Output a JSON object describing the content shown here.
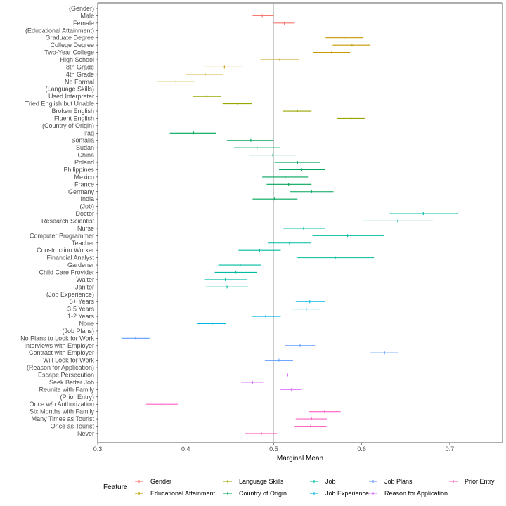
{
  "chart_data": {
    "type": "forest",
    "xlabel": "Marginal Mean",
    "xlim": [
      0.3,
      0.76
    ],
    "x_ticks": [
      0.3,
      0.4,
      0.5,
      0.6,
      0.7
    ],
    "x_tick_labels": [
      "0.3",
      "0.4",
      "0.5",
      "0.6",
      "0.7"
    ],
    "reference_line": 0.5,
    "grid": false,
    "legend_title": "Feature",
    "legend_position": "bottom",
    "features": [
      {
        "name": "Gender",
        "color": "#F8766D"
      },
      {
        "name": "Educational Attainment",
        "color": "#C49A00"
      },
      {
        "name": "Language Skills",
        "color": "#99A800"
      },
      {
        "name": "Country of Origin",
        "color": "#00A65C"
      },
      {
        "name": "Job",
        "color": "#00BCA3"
      },
      {
        "name": "Job Experience",
        "color": "#00B8E5"
      },
      {
        "name": "Job Plans",
        "color": "#619CFF"
      },
      {
        "name": "Reason for Application",
        "color": "#DB72FB"
      },
      {
        "name": "Prior Entry",
        "color": "#FF61C3"
      }
    ],
    "rows": [
      {
        "label": "(Gender)",
        "feature": null
      },
      {
        "label": "Male",
        "feature": "Gender",
        "est": 0.487,
        "lo": 0.476,
        "hi": 0.5
      },
      {
        "label": "Female",
        "feature": "Gender",
        "est": 0.512,
        "lo": 0.5,
        "hi": 0.524
      },
      {
        "label": "(Educational Attainment)",
        "feature": null
      },
      {
        "label": "Graduate Degree",
        "feature": "Educational Attainment",
        "est": 0.58,
        "lo": 0.559,
        "hi": 0.602
      },
      {
        "label": "College Degree",
        "feature": "Educational Attainment",
        "est": 0.589,
        "lo": 0.567,
        "hi": 0.61
      },
      {
        "label": "Two-Year College",
        "feature": "Educational Attainment",
        "est": 0.566,
        "lo": 0.545,
        "hi": 0.587
      },
      {
        "label": "High School",
        "feature": "Educational Attainment",
        "est": 0.507,
        "lo": 0.485,
        "hi": 0.529
      },
      {
        "label": "8th Grade",
        "feature": "Educational Attainment",
        "est": 0.444,
        "lo": 0.422,
        "hi": 0.465
      },
      {
        "label": "4th Grade",
        "feature": "Educational Attainment",
        "est": 0.422,
        "lo": 0.4,
        "hi": 0.443
      },
      {
        "label": "No Formal",
        "feature": "Educational Attainment",
        "est": 0.389,
        "lo": 0.368,
        "hi": 0.41
      },
      {
        "label": "(Language Skills)",
        "feature": null
      },
      {
        "label": "Used Interpreter",
        "feature": "Language Skills",
        "est": 0.424,
        "lo": 0.408,
        "hi": 0.44
      },
      {
        "label": "Tried English but Unable",
        "feature": "Language Skills",
        "est": 0.459,
        "lo": 0.442,
        "hi": 0.475
      },
      {
        "label": "Broken English",
        "feature": "Language Skills",
        "est": 0.527,
        "lo": 0.51,
        "hi": 0.543
      },
      {
        "label": "Fluent English",
        "feature": "Language Skills",
        "est": 0.588,
        "lo": 0.572,
        "hi": 0.604
      },
      {
        "label": "(Country of Origin)",
        "feature": null
      },
      {
        "label": "Iraq",
        "feature": "Country of Origin",
        "est": 0.409,
        "lo": 0.382,
        "hi": 0.435
      },
      {
        "label": "Somalia",
        "feature": "Country of Origin",
        "est": 0.474,
        "lo": 0.447,
        "hi": 0.5
      },
      {
        "label": "Sudan",
        "feature": "Country of Origin",
        "est": 0.481,
        "lo": 0.455,
        "hi": 0.507
      },
      {
        "label": "China",
        "feature": "Country of Origin",
        "est": 0.499,
        "lo": 0.473,
        "hi": 0.525
      },
      {
        "label": "Poland",
        "feature": "Country of Origin",
        "est": 0.527,
        "lo": 0.501,
        "hi": 0.553
      },
      {
        "label": "Philippines",
        "feature": "Country of Origin",
        "est": 0.532,
        "lo": 0.506,
        "hi": 0.558
      },
      {
        "label": "Mexico",
        "feature": "Country of Origin",
        "est": 0.513,
        "lo": 0.487,
        "hi": 0.539
      },
      {
        "label": "France",
        "feature": "Country of Origin",
        "est": 0.517,
        "lo": 0.492,
        "hi": 0.543
      },
      {
        "label": "Germany",
        "feature": "Country of Origin",
        "est": 0.543,
        "lo": 0.518,
        "hi": 0.568
      },
      {
        "label": "India",
        "feature": "Country of Origin",
        "est": 0.501,
        "lo": 0.476,
        "hi": 0.527
      },
      {
        "label": "(Job)",
        "feature": null
      },
      {
        "label": "Doctor",
        "feature": "Job",
        "est": 0.67,
        "lo": 0.632,
        "hi": 0.709
      },
      {
        "label": "Research Scientist",
        "feature": "Job",
        "est": 0.641,
        "lo": 0.601,
        "hi": 0.681
      },
      {
        "label": "Nurse",
        "feature": "Job",
        "est": 0.534,
        "lo": 0.511,
        "hi": 0.558
      },
      {
        "label": "Computer Programmer",
        "feature": "Job",
        "est": 0.584,
        "lo": 0.544,
        "hi": 0.625
      },
      {
        "label": "Teacher",
        "feature": "Job",
        "est": 0.518,
        "lo": 0.494,
        "hi": 0.542
      },
      {
        "label": "Construction Worker",
        "feature": "Job",
        "est": 0.484,
        "lo": 0.46,
        "hi": 0.508
      },
      {
        "label": "Financial Analyst",
        "feature": "Job",
        "est": 0.57,
        "lo": 0.527,
        "hi": 0.614
      },
      {
        "label": "Gardener",
        "feature": "Job",
        "est": 0.462,
        "lo": 0.437,
        "hi": 0.486
      },
      {
        "label": "Child Care Provider",
        "feature": "Job",
        "est": 0.457,
        "lo": 0.433,
        "hi": 0.481
      },
      {
        "label": "Waiter",
        "feature": "Job",
        "est": 0.445,
        "lo": 0.421,
        "hi": 0.47
      },
      {
        "label": "Janitor",
        "feature": "Job",
        "est": 0.447,
        "lo": 0.423,
        "hi": 0.471
      },
      {
        "label": "(Job Experience)",
        "feature": null
      },
      {
        "label": "5+ Years",
        "feature": "Job Experience",
        "est": 0.541,
        "lo": 0.525,
        "hi": 0.558
      },
      {
        "label": "3-5 Years",
        "feature": "Job Experience",
        "est": 0.537,
        "lo": 0.521,
        "hi": 0.553
      },
      {
        "label": "1-2 Years",
        "feature": "Job Experience",
        "est": 0.491,
        "lo": 0.475,
        "hi": 0.508
      },
      {
        "label": "None",
        "feature": "Job Experience",
        "est": 0.43,
        "lo": 0.413,
        "hi": 0.446
      },
      {
        "label": "(Job Plans)",
        "feature": null
      },
      {
        "label": "No Plans to Look for Work",
        "feature": "Job Plans",
        "est": 0.343,
        "lo": 0.327,
        "hi": 0.359
      },
      {
        "label": "Interviews with Employer",
        "feature": "Job Plans",
        "est": 0.53,
        "lo": 0.513,
        "hi": 0.547
      },
      {
        "label": "Contract with Employer",
        "feature": "Job Plans",
        "est": 0.626,
        "lo": 0.61,
        "hi": 0.642
      },
      {
        "label": "Will Look for Work",
        "feature": "Job Plans",
        "est": 0.506,
        "lo": 0.49,
        "hi": 0.522
      },
      {
        "label": "(Reason for Application)",
        "feature": null
      },
      {
        "label": "Escape Persecution",
        "feature": "Reason for Application",
        "est": 0.516,
        "lo": 0.494,
        "hi": 0.538
      },
      {
        "label": "Seek Better Job",
        "feature": "Reason for Application",
        "est": 0.476,
        "lo": 0.463,
        "hi": 0.488
      },
      {
        "label": "Reunite with Family",
        "feature": "Reason for Application",
        "est": 0.52,
        "lo": 0.507,
        "hi": 0.532
      },
      {
        "label": "(Prior Entry)",
        "feature": null
      },
      {
        "label": "Once w/o Authorization",
        "feature": "Prior Entry",
        "est": 0.373,
        "lo": 0.355,
        "hi": 0.391
      },
      {
        "label": "Six Months with Family",
        "feature": "Prior Entry",
        "est": 0.558,
        "lo": 0.54,
        "hi": 0.576
      },
      {
        "label": "Many Times as Tourist",
        "feature": "Prior Entry",
        "est": 0.543,
        "lo": 0.525,
        "hi": 0.561
      },
      {
        "label": "Once as Tourist",
        "feature": "Prior Entry",
        "est": 0.542,
        "lo": 0.524,
        "hi": 0.56
      },
      {
        "label": "Never",
        "feature": "Prior Entry",
        "est": 0.486,
        "lo": 0.467,
        "hi": 0.504
      }
    ]
  }
}
